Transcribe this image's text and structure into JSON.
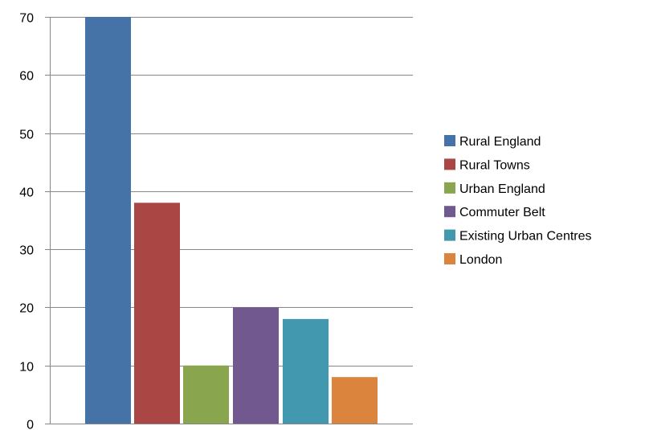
{
  "chart_data": {
    "type": "bar",
    "series": [
      {
        "name": "Rural England",
        "value": 70,
        "color": "#4572A7"
      },
      {
        "name": "Rural Towns",
        "value": 38,
        "color": "#AA4643"
      },
      {
        "name": "Urban England",
        "value": 10,
        "color": "#89A54E"
      },
      {
        "name": "Commuter Belt",
        "value": 20,
        "color": "#71588F"
      },
      {
        "name": "Existing Urban Centres",
        "value": 18,
        "color": "#4198AF"
      },
      {
        "name": "London",
        "value": 8,
        "color": "#DB843D"
      }
    ],
    "ylim": [
      0,
      70
    ],
    "yticks": [
      "0",
      "10",
      "20",
      "30",
      "40",
      "50",
      "60",
      "70"
    ],
    "grid": true,
    "legend_position": "right"
  }
}
